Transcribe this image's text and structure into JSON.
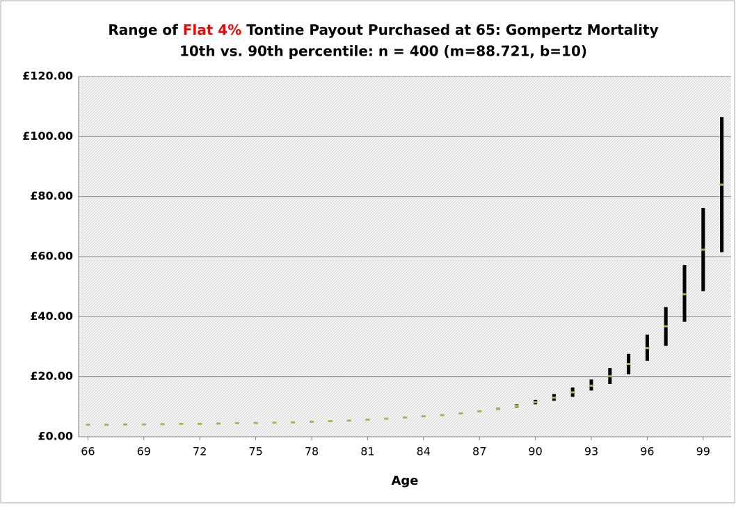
{
  "chart_data": {
    "type": "range",
    "title": {
      "before": "Range of ",
      "highlight": "Flat 4%",
      "after": " Tontine Payout Purchased at 65: Gompertz Mortality",
      "highlight_color": "#ff0000"
    },
    "subtitle": "10th vs. 90th percentile: n = 400 (m=88.721, b=10)",
    "x_label": "Age",
    "x": [
      66,
      67,
      68,
      69,
      70,
      71,
      72,
      73,
      74,
      75,
      76,
      77,
      78,
      79,
      80,
      81,
      82,
      83,
      84,
      85,
      86,
      87,
      88,
      89,
      90,
      91,
      92,
      93,
      94,
      95,
      96,
      97,
      98,
      99,
      100
    ],
    "median": [
      4.0,
      4.0,
      4.1,
      4.1,
      4.2,
      4.3,
      4.3,
      4.4,
      4.5,
      4.6,
      4.7,
      4.8,
      5.0,
      5.2,
      5.4,
      5.7,
      6.0,
      6.4,
      6.8,
      7.2,
      7.8,
      8.5,
      9.3,
      10.3,
      11.5,
      13.0,
      14.8,
      17.0,
      20.2,
      24.2,
      29.5,
      36.8,
      47.5,
      62.3,
      84.0
    ],
    "low": [
      3.8,
      3.8,
      3.9,
      3.9,
      4.0,
      4.1,
      4.1,
      4.2,
      4.3,
      4.4,
      4.5,
      4.6,
      4.8,
      5.0,
      5.2,
      5.5,
      5.8,
      6.2,
      6.5,
      7.0,
      7.5,
      8.2,
      8.9,
      9.8,
      10.8,
      12.0,
      13.3,
      15.4,
      17.6,
      20.8,
      25.3,
      30.3,
      38.3,
      48.5,
      61.5
    ],
    "high": [
      4.2,
      4.2,
      4.3,
      4.3,
      4.4,
      4.5,
      4.5,
      4.6,
      4.7,
      4.8,
      4.9,
      5.0,
      5.2,
      5.4,
      5.6,
      5.9,
      6.2,
      6.6,
      7.1,
      7.5,
      8.1,
      8.8,
      9.7,
      10.8,
      12.3,
      14.2,
      16.4,
      19.1,
      22.9,
      27.6,
      34.0,
      43.2,
      57.2,
      76.2,
      106.5
    ],
    "range_color": "#000000",
    "median_color": "#9bbb59",
    "xlim": [
      65.5,
      100.5
    ],
    "xticks": [
      66,
      69,
      72,
      75,
      78,
      81,
      84,
      87,
      90,
      93,
      96,
      99
    ],
    "ylim": [
      0,
      120
    ],
    "yticks": [
      {
        "value": 0,
        "label": "£0.00"
      },
      {
        "value": 20,
        "label": "£20.00"
      },
      {
        "value": 40,
        "label": "£40.00"
      },
      {
        "value": 60,
        "label": "£60.00"
      },
      {
        "value": 80,
        "label": "£80.00"
      },
      {
        "value": 100,
        "label": "£100.00"
      },
      {
        "value": 120,
        "label": "£120.00"
      }
    ],
    "grid": true
  }
}
